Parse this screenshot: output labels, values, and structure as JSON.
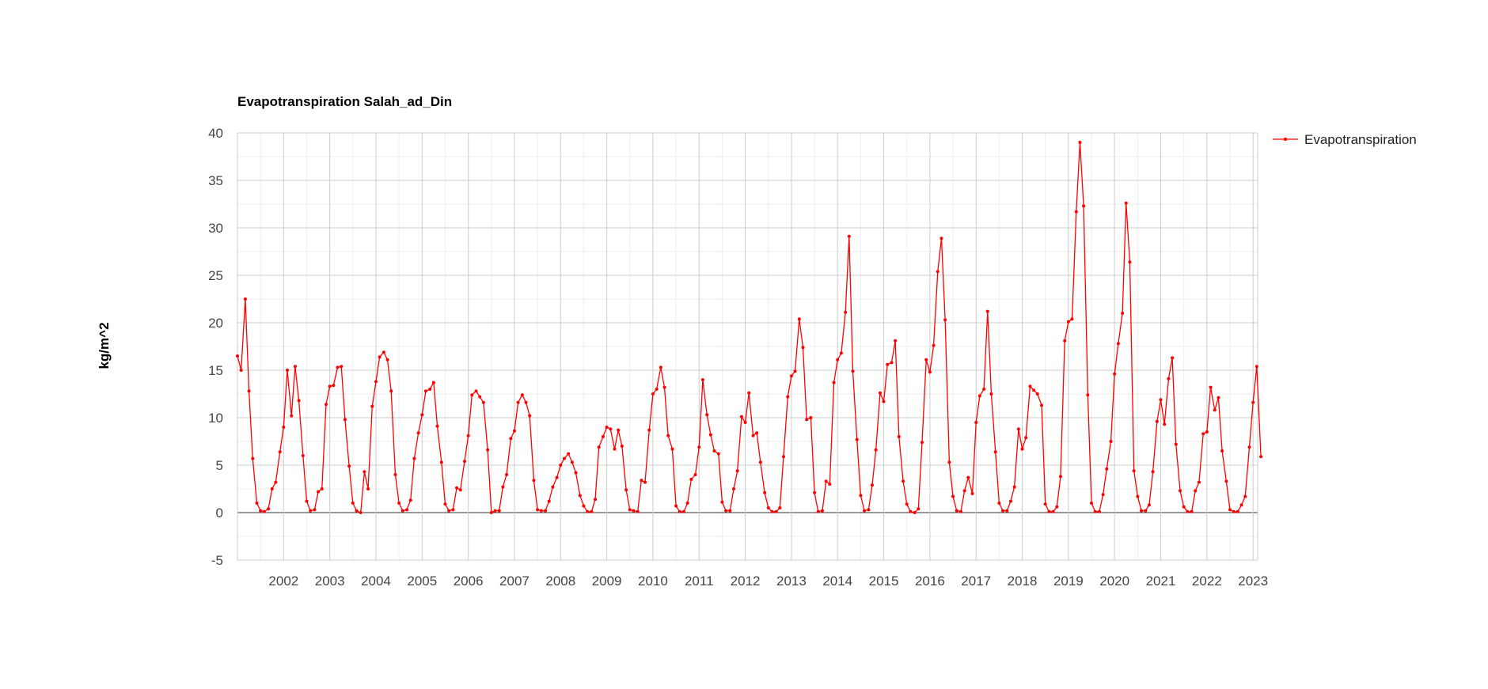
{
  "chart_data": {
    "type": "line",
    "title": "Evapotranspiration Salah_ad_Din",
    "xlabel": "",
    "ylabel": "kg/m^2",
    "ylim": [
      -5,
      40
    ],
    "y_ticks": [
      "40",
      "35",
      "30",
      "25",
      "20",
      "15",
      "10",
      "5",
      "0",
      "-5"
    ],
    "x_ticks": [
      "2002",
      "2003",
      "2004",
      "2005",
      "2006",
      "2007",
      "2008",
      "2009",
      "2010",
      "2011",
      "2012",
      "2013",
      "2014",
      "2015",
      "2016",
      "2017",
      "2018",
      "2019",
      "2020",
      "2021",
      "2022",
      "2023"
    ],
    "xlim": [
      2001.0,
      2023.1
    ],
    "grid": true,
    "legend_position": "right",
    "series": [
      {
        "name": "Evapotranspiration",
        "color": "#ff0000",
        "points": [
          [
            2001.0,
            16.5
          ],
          [
            2001.08,
            15.0
          ],
          [
            2001.17,
            22.5
          ],
          [
            2001.25,
            12.8
          ],
          [
            2001.33,
            5.7
          ],
          [
            2001.42,
            1.0
          ],
          [
            2001.5,
            0.2
          ],
          [
            2001.58,
            0.1
          ],
          [
            2001.67,
            0.4
          ],
          [
            2001.75,
            2.5
          ],
          [
            2001.83,
            3.2
          ],
          [
            2001.92,
            6.4
          ],
          [
            2002.0,
            9.0
          ],
          [
            2002.08,
            15.0
          ],
          [
            2002.17,
            10.2
          ],
          [
            2002.25,
            15.4
          ],
          [
            2002.33,
            11.8
          ],
          [
            2002.42,
            6.0
          ],
          [
            2002.5,
            1.2
          ],
          [
            2002.58,
            0.2
          ],
          [
            2002.67,
            0.3
          ],
          [
            2002.75,
            2.2
          ],
          [
            2002.83,
            2.5
          ],
          [
            2002.92,
            11.4
          ],
          [
            2003.0,
            13.3
          ],
          [
            2003.08,
            13.4
          ],
          [
            2003.17,
            15.3
          ],
          [
            2003.25,
            15.4
          ],
          [
            2003.33,
            9.8
          ],
          [
            2003.42,
            4.9
          ],
          [
            2003.5,
            1.0
          ],
          [
            2003.58,
            0.2
          ],
          [
            2003.67,
            0.0
          ],
          [
            2003.75,
            4.3
          ],
          [
            2003.83,
            2.5
          ],
          [
            2003.92,
            11.2
          ],
          [
            2004.0,
            13.8
          ],
          [
            2004.08,
            16.4
          ],
          [
            2004.17,
            16.9
          ],
          [
            2004.25,
            16.1
          ],
          [
            2004.33,
            12.8
          ],
          [
            2004.42,
            4.0
          ],
          [
            2004.5,
            1.0
          ],
          [
            2004.58,
            0.2
          ],
          [
            2004.67,
            0.3
          ],
          [
            2004.75,
            1.3
          ],
          [
            2004.83,
            5.7
          ],
          [
            2004.92,
            8.4
          ],
          [
            2005.0,
            10.3
          ],
          [
            2005.08,
            12.8
          ],
          [
            2005.17,
            13.0
          ],
          [
            2005.25,
            13.7
          ],
          [
            2005.33,
            9.1
          ],
          [
            2005.42,
            5.3
          ],
          [
            2005.5,
            0.9
          ],
          [
            2005.58,
            0.2
          ],
          [
            2005.67,
            0.3
          ],
          [
            2005.75,
            2.6
          ],
          [
            2005.83,
            2.4
          ],
          [
            2005.92,
            5.4
          ],
          [
            2006.0,
            8.1
          ],
          [
            2006.08,
            12.4
          ],
          [
            2006.17,
            12.8
          ],
          [
            2006.25,
            12.2
          ],
          [
            2006.33,
            11.6
          ],
          [
            2006.42,
            6.6
          ],
          [
            2006.5,
            0.0
          ],
          [
            2006.58,
            0.2
          ],
          [
            2006.67,
            0.2
          ],
          [
            2006.75,
            2.7
          ],
          [
            2006.83,
            4.0
          ],
          [
            2006.92,
            7.8
          ],
          [
            2007.0,
            8.6
          ],
          [
            2007.08,
            11.6
          ],
          [
            2007.17,
            12.4
          ],
          [
            2007.25,
            11.6
          ],
          [
            2007.33,
            10.2
          ],
          [
            2007.42,
            3.4
          ],
          [
            2007.5,
            0.3
          ],
          [
            2007.58,
            0.2
          ],
          [
            2007.67,
            0.2
          ],
          [
            2007.75,
            1.2
          ],
          [
            2007.83,
            2.7
          ],
          [
            2007.92,
            3.7
          ],
          [
            2008.0,
            5.0
          ],
          [
            2008.08,
            5.7
          ],
          [
            2008.17,
            6.2
          ],
          [
            2008.25,
            5.3
          ],
          [
            2008.33,
            4.2
          ],
          [
            2008.42,
            1.8
          ],
          [
            2008.5,
            0.7
          ],
          [
            2008.58,
            0.1
          ],
          [
            2008.67,
            0.1
          ],
          [
            2008.75,
            1.4
          ],
          [
            2008.83,
            6.9
          ],
          [
            2008.92,
            8.0
          ],
          [
            2009.0,
            9.0
          ],
          [
            2009.08,
            8.8
          ],
          [
            2009.17,
            6.7
          ],
          [
            2009.25,
            8.7
          ],
          [
            2009.33,
            7.0
          ],
          [
            2009.42,
            2.4
          ],
          [
            2009.5,
            0.3
          ],
          [
            2009.58,
            0.2
          ],
          [
            2009.67,
            0.1
          ],
          [
            2009.75,
            3.4
          ],
          [
            2009.83,
            3.2
          ],
          [
            2009.92,
            8.7
          ],
          [
            2010.0,
            12.5
          ],
          [
            2010.08,
            13.0
          ],
          [
            2010.17,
            15.3
          ],
          [
            2010.25,
            13.2
          ],
          [
            2010.33,
            8.1
          ],
          [
            2010.42,
            6.7
          ],
          [
            2010.5,
            0.7
          ],
          [
            2010.58,
            0.1
          ],
          [
            2010.67,
            0.1
          ],
          [
            2010.75,
            1.0
          ],
          [
            2010.83,
            3.5
          ],
          [
            2010.92,
            4.0
          ],
          [
            2011.0,
            6.9
          ],
          [
            2011.08,
            14.0
          ],
          [
            2011.17,
            10.3
          ],
          [
            2011.25,
            8.2
          ],
          [
            2011.33,
            6.5
          ],
          [
            2011.42,
            6.2
          ],
          [
            2011.5,
            1.1
          ],
          [
            2011.58,
            0.2
          ],
          [
            2011.67,
            0.2
          ],
          [
            2011.75,
            2.5
          ],
          [
            2011.83,
            4.4
          ],
          [
            2011.92,
            10.1
          ],
          [
            2012.0,
            9.5
          ],
          [
            2012.08,
            12.6
          ],
          [
            2012.17,
            8.1
          ],
          [
            2012.25,
            8.4
          ],
          [
            2012.33,
            5.3
          ],
          [
            2012.42,
            2.1
          ],
          [
            2012.5,
            0.5
          ],
          [
            2012.58,
            0.1
          ],
          [
            2012.67,
            0.1
          ],
          [
            2012.75,
            0.5
          ],
          [
            2012.83,
            5.9
          ],
          [
            2012.92,
            12.2
          ],
          [
            2013.0,
            14.4
          ],
          [
            2013.08,
            14.9
          ],
          [
            2013.17,
            20.4
          ],
          [
            2013.25,
            17.4
          ],
          [
            2013.33,
            9.8
          ],
          [
            2013.42,
            10.0
          ],
          [
            2013.5,
            2.1
          ],
          [
            2013.58,
            0.1
          ],
          [
            2013.67,
            0.2
          ],
          [
            2013.75,
            3.3
          ],
          [
            2013.83,
            3.0
          ],
          [
            2013.92,
            13.7
          ],
          [
            2014.0,
            16.1
          ],
          [
            2014.08,
            16.8
          ],
          [
            2014.17,
            21.1
          ],
          [
            2014.25,
            29.1
          ],
          [
            2014.33,
            14.9
          ],
          [
            2014.42,
            7.7
          ],
          [
            2014.5,
            1.8
          ],
          [
            2014.58,
            0.2
          ],
          [
            2014.67,
            0.3
          ],
          [
            2014.75,
            2.9
          ],
          [
            2014.83,
            6.6
          ],
          [
            2014.92,
            12.6
          ],
          [
            2015.0,
            11.7
          ],
          [
            2015.08,
            15.6
          ],
          [
            2015.17,
            15.8
          ],
          [
            2015.25,
            18.1
          ],
          [
            2015.33,
            8.0
          ],
          [
            2015.42,
            3.3
          ],
          [
            2015.5,
            0.9
          ],
          [
            2015.58,
            0.1
          ],
          [
            2015.67,
            0.0
          ],
          [
            2015.75,
            0.4
          ],
          [
            2015.83,
            7.4
          ],
          [
            2015.92,
            16.1
          ],
          [
            2016.0,
            14.8
          ],
          [
            2016.08,
            17.6
          ],
          [
            2016.17,
            25.4
          ],
          [
            2016.25,
            28.9
          ],
          [
            2016.33,
            20.3
          ],
          [
            2016.42,
            5.3
          ],
          [
            2016.5,
            1.7
          ],
          [
            2016.58,
            0.2
          ],
          [
            2016.67,
            0.1
          ],
          [
            2016.75,
            2.3
          ],
          [
            2016.83,
            3.7
          ],
          [
            2016.92,
            2.0
          ],
          [
            2017.0,
            9.5
          ],
          [
            2017.08,
            12.3
          ],
          [
            2017.17,
            13.0
          ],
          [
            2017.25,
            21.2
          ],
          [
            2017.33,
            12.5
          ],
          [
            2017.42,
            6.4
          ],
          [
            2017.5,
            1.0
          ],
          [
            2017.58,
            0.2
          ],
          [
            2017.67,
            0.2
          ],
          [
            2017.75,
            1.2
          ],
          [
            2017.83,
            2.7
          ],
          [
            2017.92,
            8.8
          ],
          [
            2018.0,
            6.7
          ],
          [
            2018.08,
            7.9
          ],
          [
            2018.17,
            13.3
          ],
          [
            2018.25,
            12.9
          ],
          [
            2018.33,
            12.5
          ],
          [
            2018.42,
            11.3
          ],
          [
            2018.5,
            0.9
          ],
          [
            2018.58,
            0.1
          ],
          [
            2018.67,
            0.1
          ],
          [
            2018.75,
            0.6
          ],
          [
            2018.83,
            3.8
          ],
          [
            2018.92,
            18.1
          ],
          [
            2019.0,
            20.1
          ],
          [
            2019.08,
            20.4
          ],
          [
            2019.17,
            31.7
          ],
          [
            2019.25,
            39.0
          ],
          [
            2019.33,
            32.3
          ],
          [
            2019.42,
            12.4
          ],
          [
            2019.5,
            1.0
          ],
          [
            2019.58,
            0.1
          ],
          [
            2019.67,
            0.1
          ],
          [
            2019.75,
            1.9
          ],
          [
            2019.83,
            4.6
          ],
          [
            2019.92,
            7.5
          ],
          [
            2020.0,
            14.6
          ],
          [
            2020.08,
            17.8
          ],
          [
            2020.17,
            21.0
          ],
          [
            2020.25,
            32.6
          ],
          [
            2020.33,
            26.4
          ],
          [
            2020.42,
            4.4
          ],
          [
            2020.5,
            1.7
          ],
          [
            2020.58,
            0.2
          ],
          [
            2020.67,
            0.2
          ],
          [
            2020.75,
            0.8
          ],
          [
            2020.83,
            4.3
          ],
          [
            2020.92,
            9.6
          ],
          [
            2021.0,
            11.9
          ],
          [
            2021.08,
            9.3
          ],
          [
            2021.17,
            14.1
          ],
          [
            2021.25,
            16.3
          ],
          [
            2021.33,
            7.2
          ],
          [
            2021.42,
            2.3
          ],
          [
            2021.5,
            0.6
          ],
          [
            2021.58,
            0.1
          ],
          [
            2021.67,
            0.1
          ],
          [
            2021.75,
            2.3
          ],
          [
            2021.83,
            3.2
          ],
          [
            2021.92,
            8.3
          ],
          [
            2022.0,
            8.5
          ],
          [
            2022.08,
            13.2
          ],
          [
            2022.17,
            10.8
          ],
          [
            2022.25,
            12.1
          ],
          [
            2022.33,
            6.5
          ],
          [
            2022.42,
            3.3
          ],
          [
            2022.5,
            0.3
          ],
          [
            2022.58,
            0.1
          ],
          [
            2022.67,
            0.1
          ],
          [
            2022.75,
            0.8
          ],
          [
            2022.83,
            1.7
          ],
          [
            2022.92,
            6.9
          ],
          [
            2023.0,
            11.6
          ],
          [
            2023.08,
            15.4
          ],
          [
            2023.17,
            5.9
          ]
        ]
      }
    ]
  }
}
